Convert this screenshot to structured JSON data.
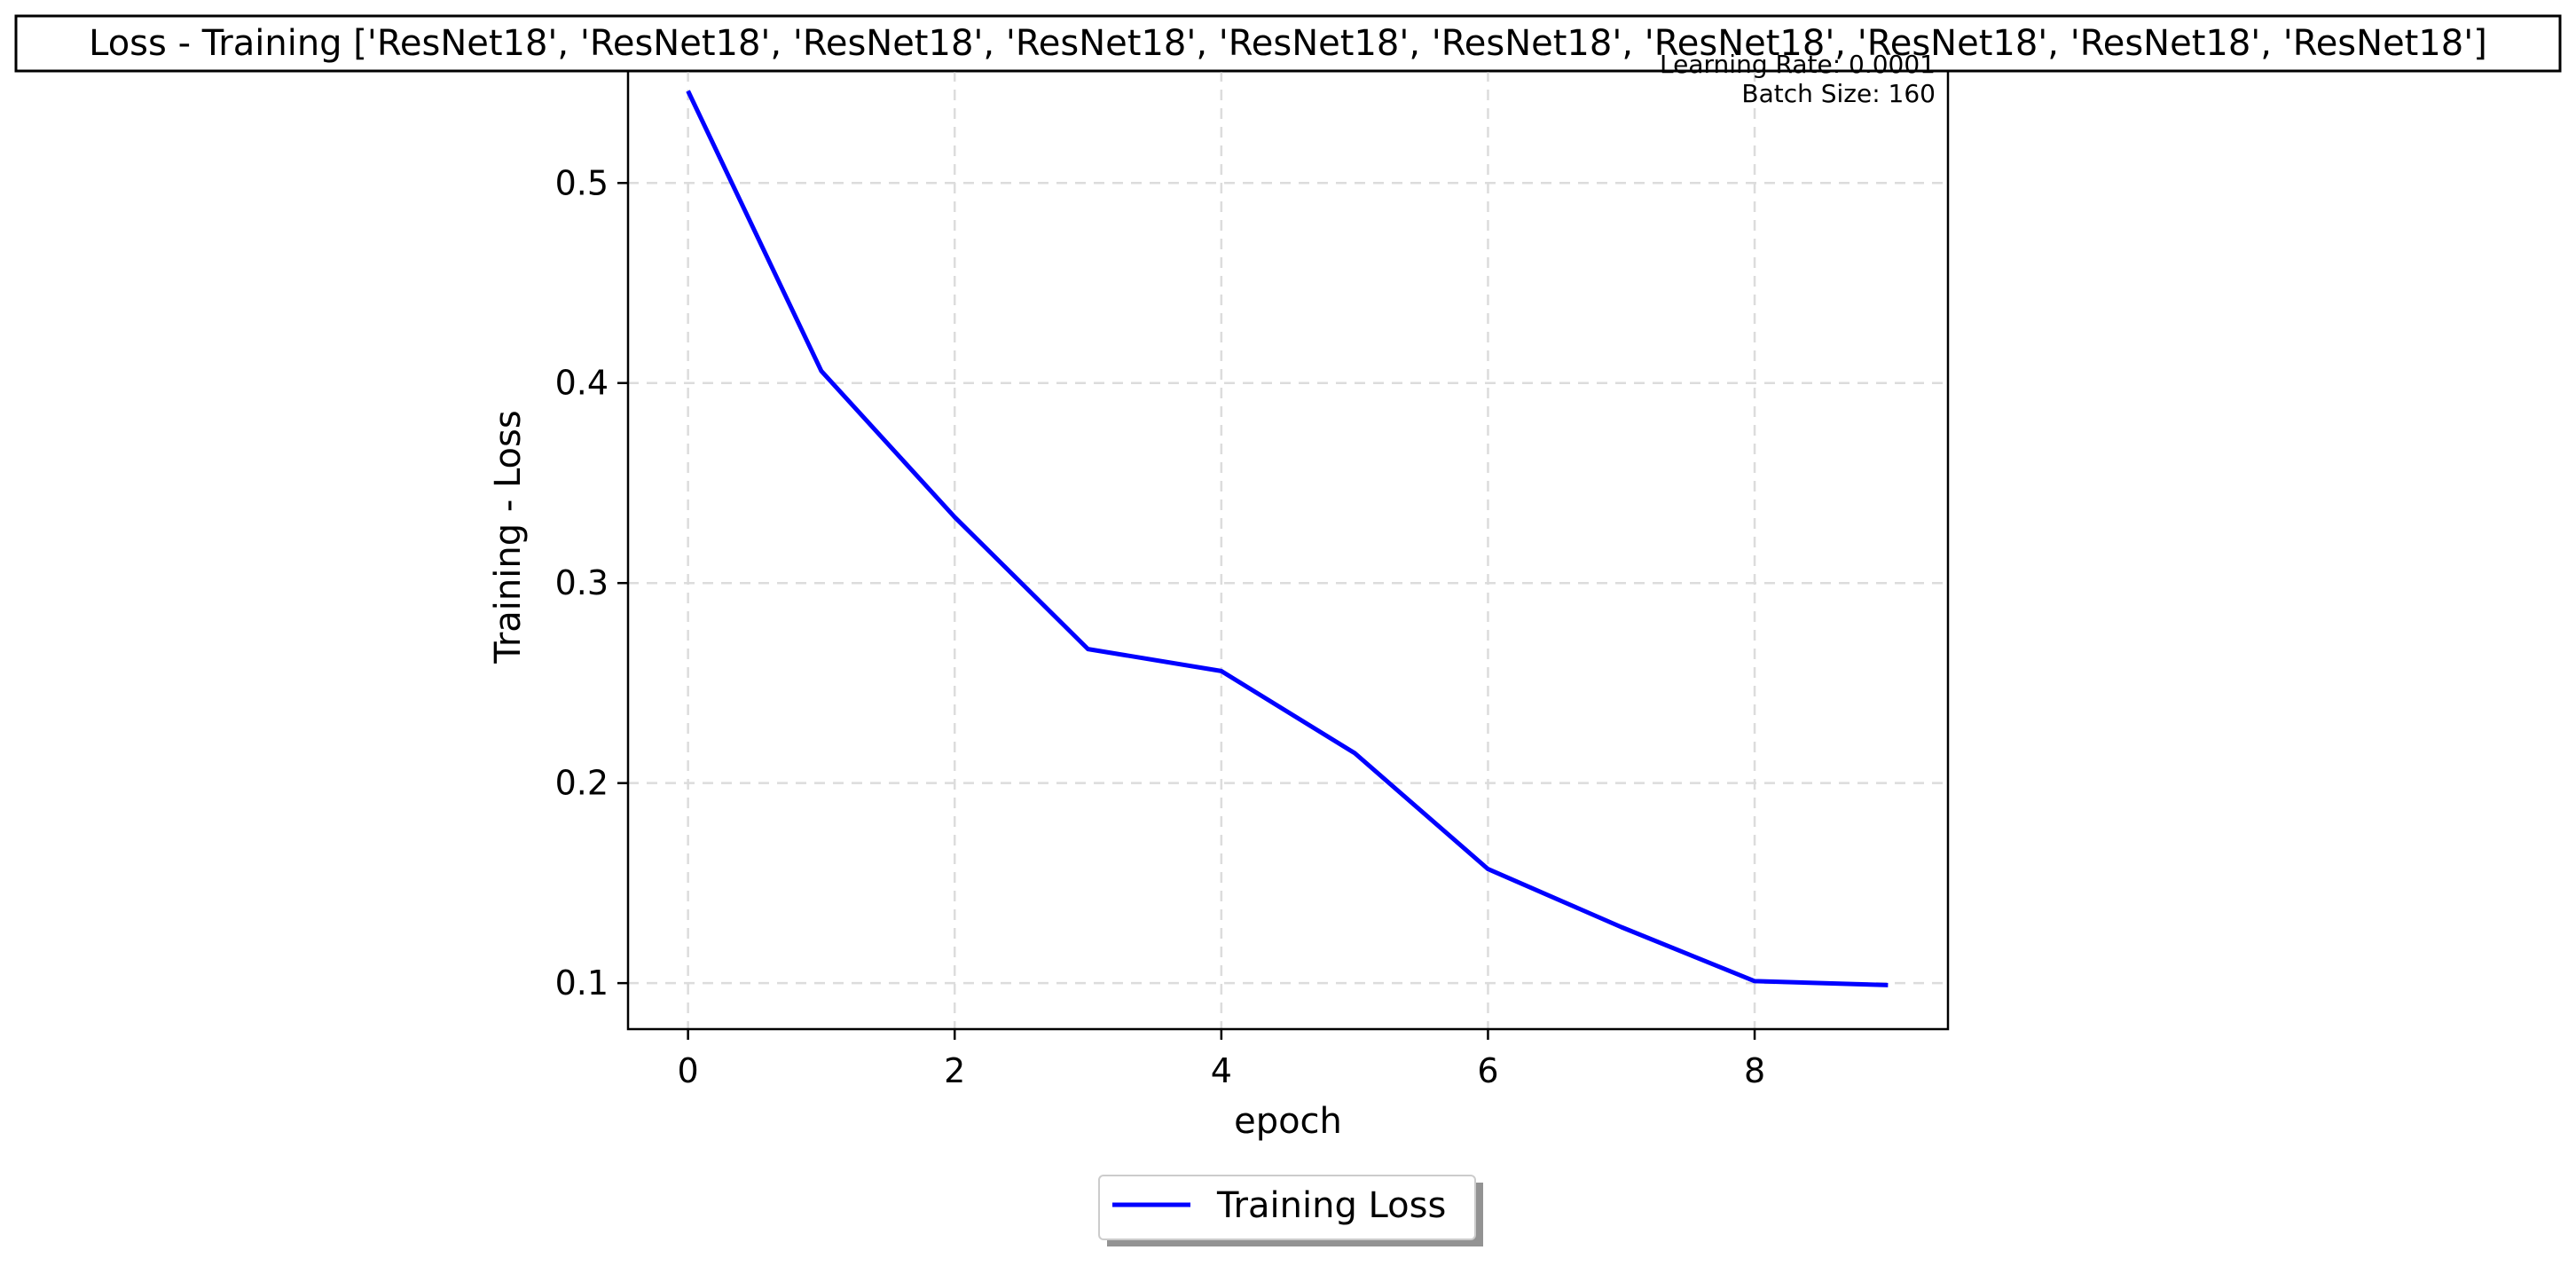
{
  "chart_data": {
    "type": "line",
    "title": "Loss - Training ['ResNet18', 'ResNet18', 'ResNet18', 'ResNet18', 'ResNet18', 'ResNet18', 'ResNet18', 'ResNet18', 'ResNet18', 'ResNet18']",
    "xlabel": "epoch",
    "ylabel": "Training - Loss",
    "x": [
      0,
      1,
      2,
      3,
      4,
      5,
      6,
      7,
      8,
      9
    ],
    "series": [
      {
        "name": "Training Loss",
        "color": "#0000ff",
        "values": [
          0.546,
          0.406,
          0.333,
          0.267,
          0.256,
          0.215,
          0.157,
          0.128,
          0.101,
          0.099
        ]
      }
    ],
    "xlim": [
      -0.45,
      9.45
    ],
    "ylim": [
      0.077,
      0.556
    ],
    "xticks": [
      0,
      2,
      4,
      6,
      8
    ],
    "xtick_labels": [
      "0",
      "2",
      "4",
      "6",
      "8"
    ],
    "yticks": [
      0.1,
      0.2,
      0.3,
      0.4,
      0.5
    ],
    "ytick_labels": [
      "0.1",
      "0.2",
      "0.3",
      "0.4",
      "0.5"
    ],
    "grid": true,
    "legend_placement": "bottom-center",
    "annotations": [
      "Learning Rate: 0.0001",
      "Batch Size: 160"
    ]
  }
}
